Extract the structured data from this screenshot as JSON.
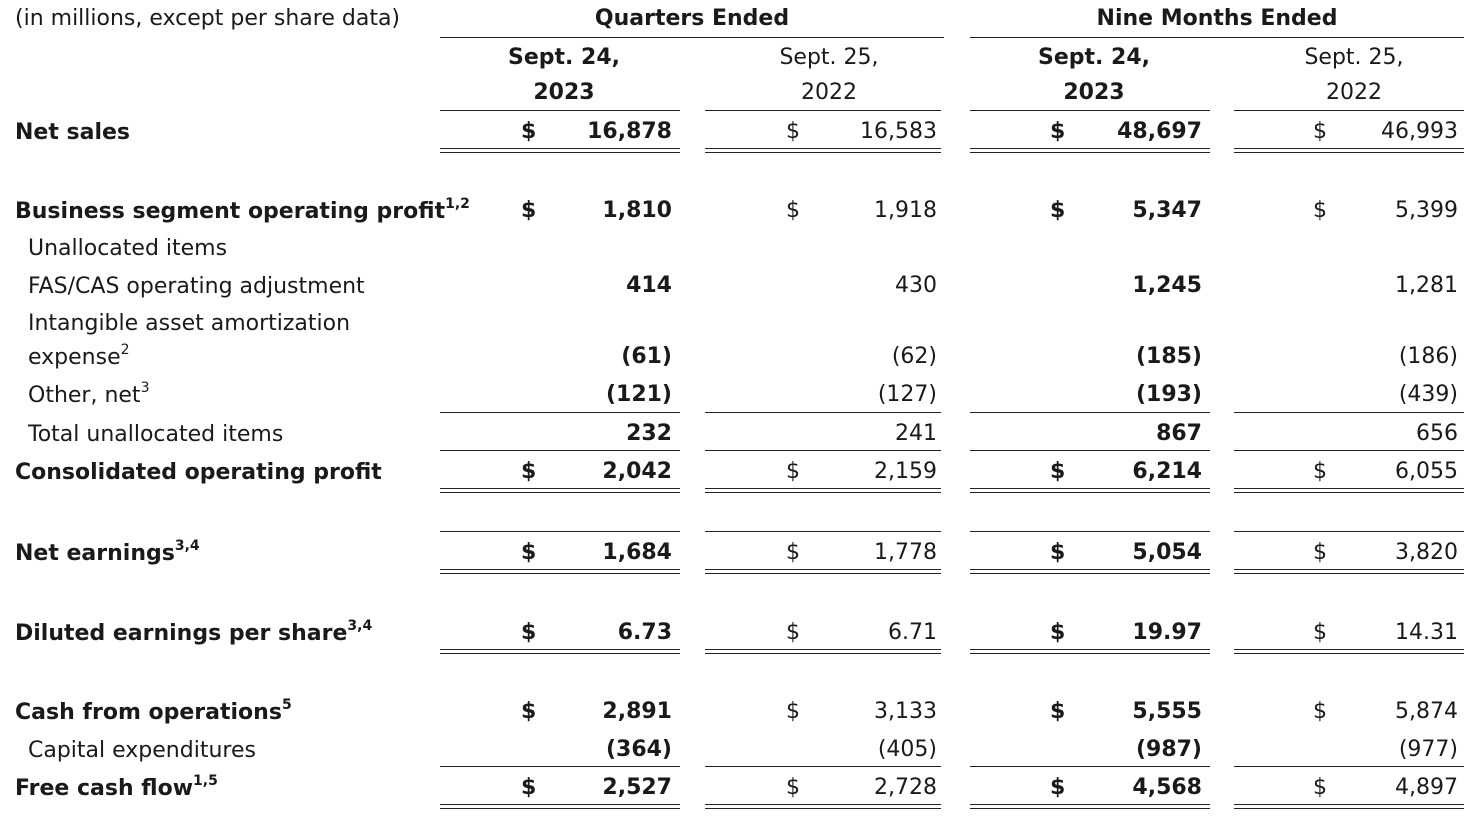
{
  "caption": "(in millions, except per share data)",
  "groups": [
    "Quarters Ended",
    "Nine Months Ended"
  ],
  "columns": [
    {
      "line1": "Sept. 24,",
      "line2": "2023"
    },
    {
      "line1": "Sept. 25,",
      "line2": "2022"
    },
    {
      "line1": "Sept. 24,",
      "line2": "2023"
    },
    {
      "line1": "Sept. 25,",
      "line2": "2022"
    }
  ],
  "currency": "$",
  "rows": [
    {
      "label": "Net sales",
      "sup": "",
      "values": [
        "16,878",
        "16,583",
        "48,697",
        "46,993"
      ]
    },
    {
      "label": "Business segment operating profit",
      "sup": "1,2",
      "values": [
        "1,810",
        "1,918",
        "5,347",
        "5,399"
      ]
    },
    {
      "label": "Unallocated items",
      "sup": "",
      "values": [
        "",
        "",
        "",
        ""
      ]
    },
    {
      "label": "FAS/CAS operating adjustment",
      "sup": "",
      "values": [
        "414",
        "430",
        "1,245",
        "1,281"
      ]
    },
    {
      "label": "Intangible asset amortization",
      "sup": "",
      "values": [
        "",
        "",
        "",
        ""
      ]
    },
    {
      "label": "expense",
      "sup": "2",
      "values": [
        "(61)",
        "(62)",
        "(185)",
        "(186)"
      ]
    },
    {
      "label": "Other, net",
      "sup": "3",
      "values": [
        "(121)",
        "(127)",
        "(193)",
        "(439)"
      ]
    },
    {
      "label": "Total unallocated items",
      "sup": "",
      "values": [
        "232",
        "241",
        "867",
        "656"
      ]
    },
    {
      "label": "Consolidated operating profit",
      "sup": "",
      "values": [
        "2,042",
        "2,159",
        "6,214",
        "6,055"
      ]
    },
    {
      "label": "Net earnings",
      "sup": "3,4",
      "values": [
        "1,684",
        "1,778",
        "5,054",
        "3,820"
      ]
    },
    {
      "label": "Diluted earnings per share",
      "sup": "3,4",
      "values": [
        "6.73",
        "6.71",
        "19.97",
        "14.31"
      ]
    },
    {
      "label": "Cash from operations",
      "sup": "5",
      "values": [
        "2,891",
        "3,133",
        "5,555",
        "5,874"
      ]
    },
    {
      "label": "Capital expenditures",
      "sup": "",
      "values": [
        "(364)",
        "(405)",
        "(987)",
        "(977)"
      ]
    },
    {
      "label": "Free cash flow",
      "sup": "1,5",
      "values": [
        "2,527",
        "2,728",
        "4,568",
        "4,897"
      ]
    }
  ]
}
